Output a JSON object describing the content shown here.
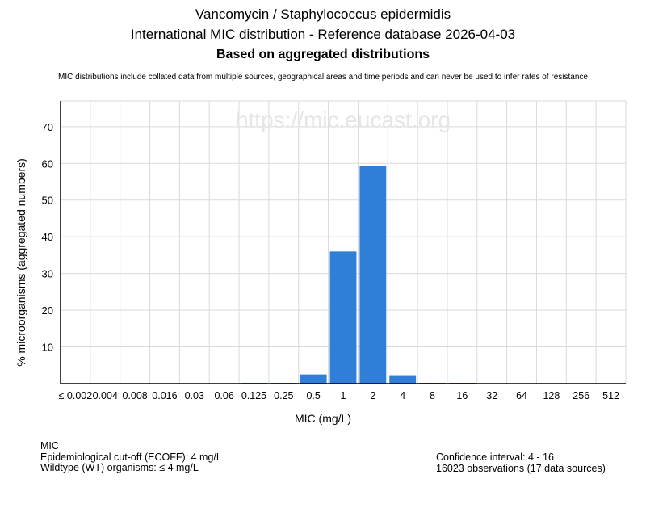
{
  "header": {
    "title": "Vancomycin / Staphylococcus epidermidis",
    "subtitle": "International MIC distribution - Reference database 2026-04-03",
    "subtitle2": "Based on aggregated distributions",
    "note": "MIC distributions include collated data from multiple sources, geographical areas and time periods and can never be used to infer rates of resistance"
  },
  "watermark": "https://mic.eucast.org",
  "chart_data": {
    "type": "bar",
    "categories": [
      "≤ 0.002",
      "0.004",
      "0.008",
      "0.016",
      "0.03",
      "0.06",
      "0.125",
      "0.25",
      "0.5",
      "1",
      "2",
      "4",
      "8",
      "16",
      "32",
      "64",
      "128",
      "256",
      "512"
    ],
    "values": [
      0,
      0,
      0,
      0,
      0,
      0,
      0.2,
      0.2,
      2.5,
      36,
      59.2,
      2.3,
      0.2,
      0.2,
      0,
      0,
      0,
      0,
      0
    ],
    "ylim": [
      0,
      77
    ],
    "yticks": [
      10,
      20,
      30,
      40,
      50,
      60,
      70
    ],
    "xlabel": "MIC (mg/L)",
    "ylabel": "% microorganisms (aggregated numbers)",
    "grid": true,
    "colors": {
      "wildtype": "#2f7fd8",
      "above_ecoff": "#c0392b"
    },
    "ecoff": "4"
  },
  "info": {
    "left": [
      "MIC",
      "Epidemiological cut-off (ECOFF): 4 mg/L",
      "Wildtype (WT) organisms: ≤ 4 mg/L"
    ],
    "right": [
      "Confidence interval: 4 - 16",
      "16023 observations (17 data sources)"
    ]
  }
}
